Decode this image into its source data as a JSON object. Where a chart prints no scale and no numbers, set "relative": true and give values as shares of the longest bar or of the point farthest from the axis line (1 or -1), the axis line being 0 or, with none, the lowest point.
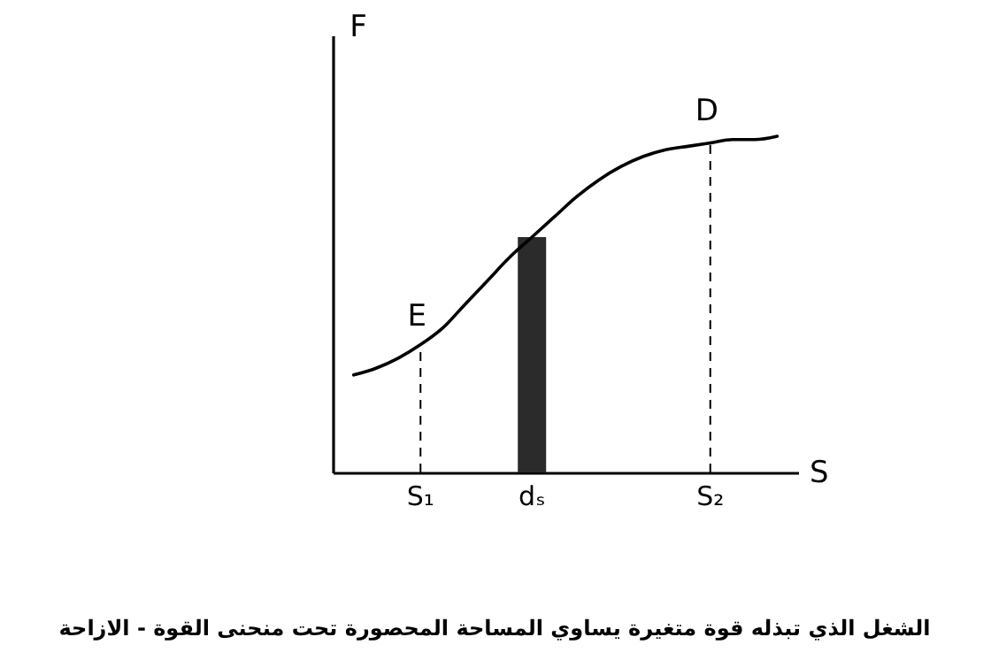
{
  "chart_data": {
    "type": "line",
    "title": "الشغل الذي تبذله قوة متغيرة يساوي المساحة المحصورة تحت منحنى القوة - الازاحة",
    "xlabel": "S",
    "ylabel": "F",
    "relative": true,
    "tick_labels": "x",
    "grid": false,
    "categories": [
      null,
      null,
      null,
      "S₁",
      null,
      null,
      null,
      null,
      "dₛ",
      null,
      null,
      null,
      null,
      null,
      null,
      null,
      "S₂",
      null,
      null,
      null
    ],
    "series": [
      {
        "type": "bar",
        "color": "#2b2b2b",
        "values": [
          null,
          null,
          null,
          null,
          null,
          null,
          null,
          null,
          0.7,
          null,
          null,
          null,
          null,
          null,
          null,
          null,
          null,
          null,
          null,
          null
        ]
      },
      {
        "color": "#000000",
        "values": [
          0.29,
          0.31,
          0.34,
          0.38,
          0.43,
          0.5,
          0.57,
          0.64,
          0.7,
          0.76,
          0.82,
          0.87,
          0.91,
          0.94,
          0.96,
          0.97,
          0.98,
          0.99,
          0.99,
          1
        ]
      }
    ],
    "ref_lines": [
      {
        "axis": "x",
        "value": "S₁",
        "line_style": "dashed",
        "color": "#000000"
      },
      {
        "axis": "x",
        "value": "S₂",
        "line_style": "dashed",
        "color": "#000000"
      }
    ],
    "annotations": [
      {
        "text": "E",
        "x": "S₁",
        "y": 0.38
      },
      {
        "text": "D",
        "x": "S₂",
        "y": 0.99
      }
    ]
  }
}
